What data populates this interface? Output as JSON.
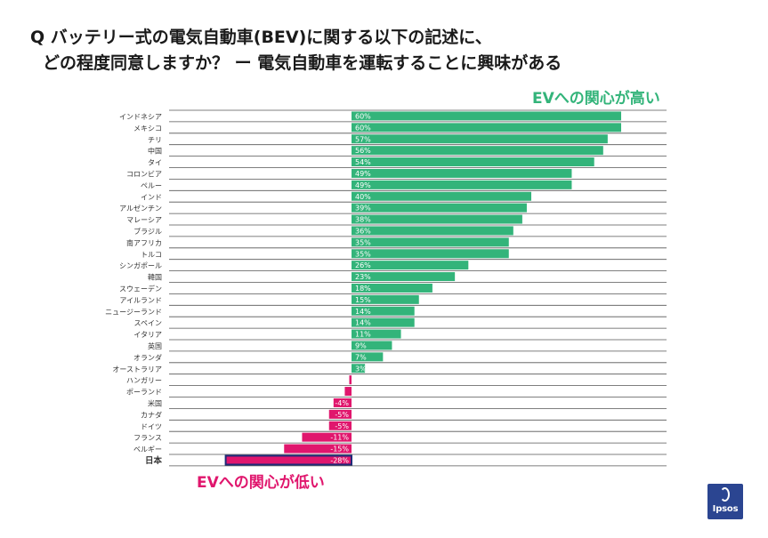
{
  "title": {
    "line1": "Q バッテリー式の電気自動車(BEV)に関する以下の記述に、",
    "line2": "どの程度同意しますか？ ー 電気自動車を運転することに興味がある"
  },
  "annotations": {
    "high": "EVへの関心が高い",
    "low": "EVへの関心が低い"
  },
  "logo": {
    "text": "Ipsos"
  },
  "colors": {
    "positive": "#33b47a",
    "negative": "#e0166d",
    "highlight_border": "#1e2a78",
    "gridline": "#555555"
  },
  "chart_data": {
    "type": "bar",
    "orientation": "horizontal",
    "title": "電気自動車を運転することに興味がある",
    "xlabel": "",
    "ylabel": "",
    "xlim": [
      -30,
      65
    ],
    "highlight": "日本",
    "categories": [
      "インドネシア",
      "メキシコ",
      "チリ",
      "中国",
      "タイ",
      "コロンビア",
      "ペルー",
      "インド",
      "アルゼンチン",
      "マレーシア",
      "ブラジル",
      "南アフリカ",
      "トルコ",
      "シンガポール",
      "韓国",
      "スウェーデン",
      "アイルランド",
      "ニュージーランド",
      "スペイン",
      "イタリア",
      "英国",
      "オランダ",
      "オーストラリア",
      "ハンガリー",
      "ポーランド",
      "米国",
      "カナダ",
      "ドイツ",
      "フランス",
      "ベルギー",
      "日本"
    ],
    "values": [
      60,
      60,
      57,
      56,
      54,
      49,
      49,
      40,
      39,
      38,
      36,
      35,
      35,
      26,
      23,
      18,
      15,
      14,
      14,
      11,
      9,
      7,
      3,
      -0.5,
      -1.5,
      -4,
      -5,
      -5,
      -11,
      -15,
      -28
    ],
    "labels": [
      "60%",
      "60%",
      "57%",
      "56%",
      "54%",
      "49%",
      "49%",
      "40%",
      "39%",
      "38%",
      "36%",
      "35%",
      "35%",
      "26%",
      "23%",
      "18%",
      "15%",
      "14%",
      "14%",
      "11%",
      "9%",
      "7%",
      "3%",
      "",
      "",
      "-4%",
      "-5%",
      "-5%",
      "-11%",
      "-15%",
      "-28%"
    ]
  }
}
